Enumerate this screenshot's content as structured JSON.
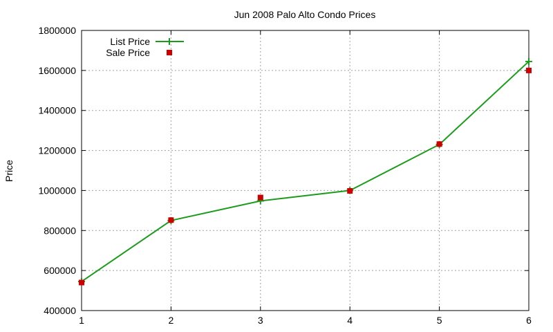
{
  "chart_data": {
    "type": "line",
    "title": "Jun 2008 Palo Alto Condo Prices",
    "xlabel": "",
    "ylabel": "Price",
    "x": [
      1,
      2,
      3,
      4,
      5,
      6
    ],
    "xlim": [
      1,
      6
    ],
    "ylim": [
      400000,
      1800000
    ],
    "xticks": [
      1,
      2,
      3,
      4,
      5,
      6
    ],
    "yticks": [
      400000,
      600000,
      800000,
      1000000,
      1200000,
      1400000,
      1600000,
      1800000
    ],
    "grid": true,
    "legend_position": "top-left",
    "series": [
      {
        "name": "List Price",
        "style": "line-with-plus-markers",
        "color": "#1a9c1a",
        "values": [
          545000,
          850000,
          948000,
          1000000,
          1230000,
          1645000
        ]
      },
      {
        "name": "Sale Price",
        "style": "square-markers",
        "color": "#cc0000",
        "values": [
          540000,
          852000,
          965000,
          998000,
          1232000,
          1600000
        ]
      }
    ]
  }
}
